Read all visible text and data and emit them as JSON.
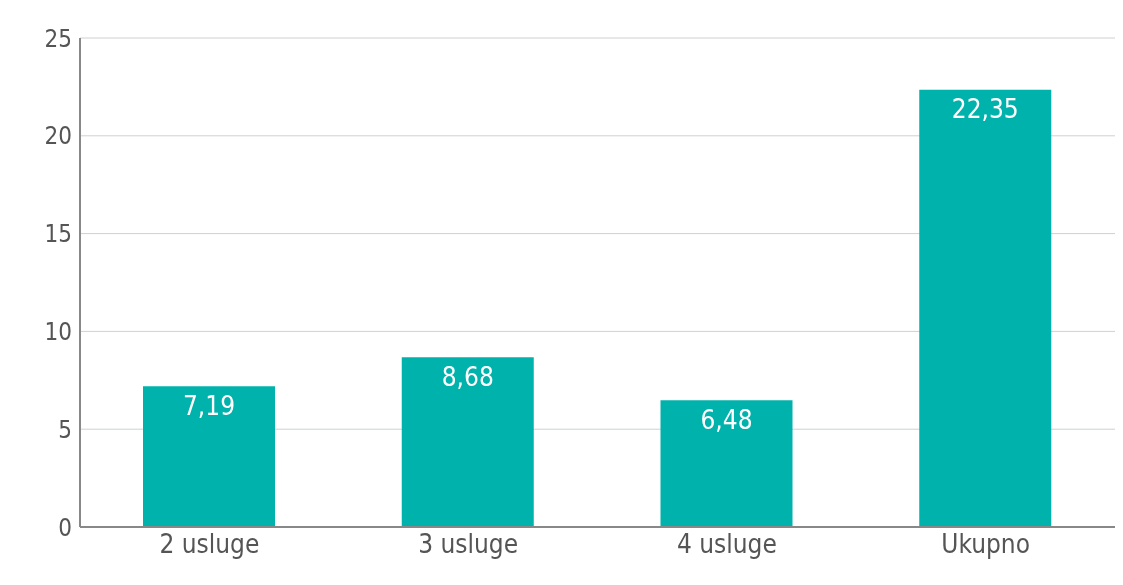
{
  "chart_data": {
    "type": "bar",
    "categories": [
      "2 usluge",
      "3 usluge",
      "4 usluge",
      "Ukupno"
    ],
    "values": [
      7.19,
      8.68,
      6.48,
      22.35
    ],
    "value_labels": [
      "7,19",
      "8,68",
      "6,48",
      "22,35"
    ],
    "color": "#00b2ac",
    "ylim": [
      0,
      25
    ],
    "yticks": [
      0,
      5,
      10,
      15,
      20,
      25
    ],
    "grid": "y"
  }
}
